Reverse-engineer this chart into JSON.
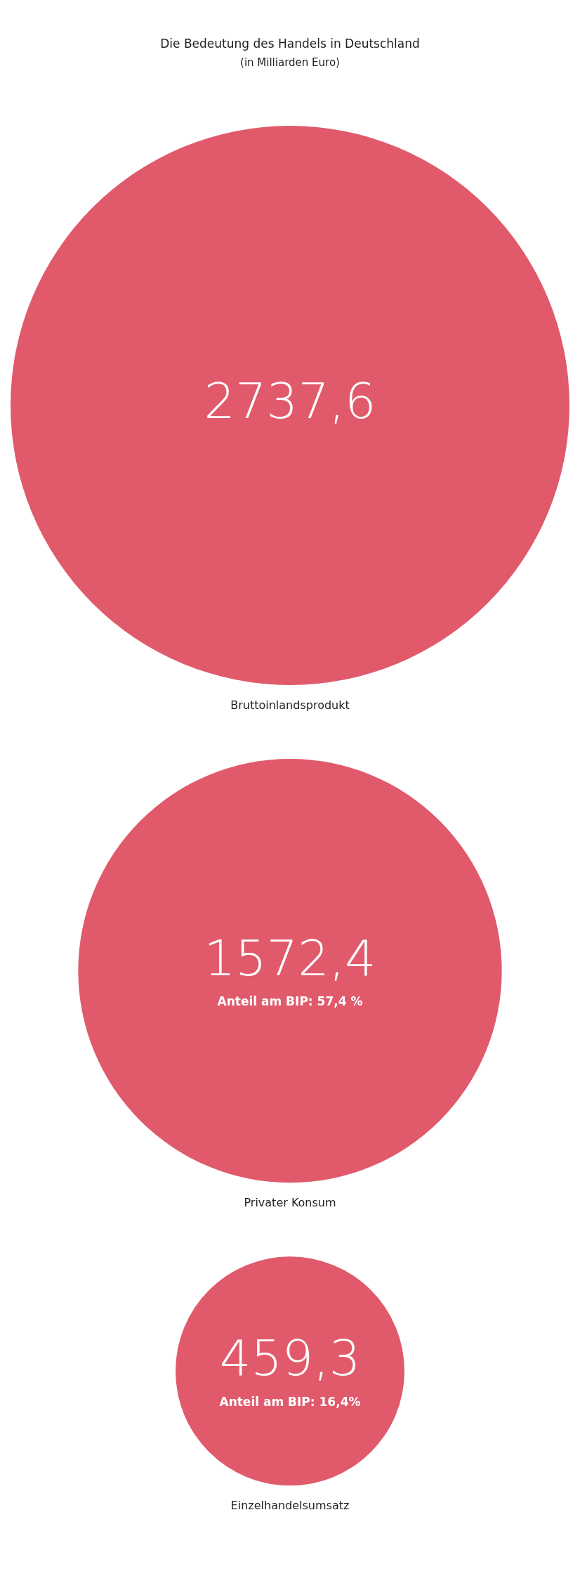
{
  "chart_data": {
    "type": "other",
    "title": "Die Bedeutung des Handels in Deutschland",
    "subtitle": "(in Milliarden Euro)",
    "categories": [
      "Bruttoinlandsprodukt",
      "Privater Konsum",
      "Einzelhandelsumsatz"
    ],
    "values": [
      2737.6,
      1572.4,
      459.3
    ],
    "value_labels": [
      "2737,6",
      "1572,4",
      "459,3"
    ],
    "color": "#e05a6b",
    "annotations": [
      {
        "text": "Anteil am BIP: 57,4 %",
        "x": "Privater Konsum"
      },
      {
        "text": "Anteil am BIP: 16,4%",
        "x": "Einzelhandelsumsatz"
      }
    ]
  }
}
